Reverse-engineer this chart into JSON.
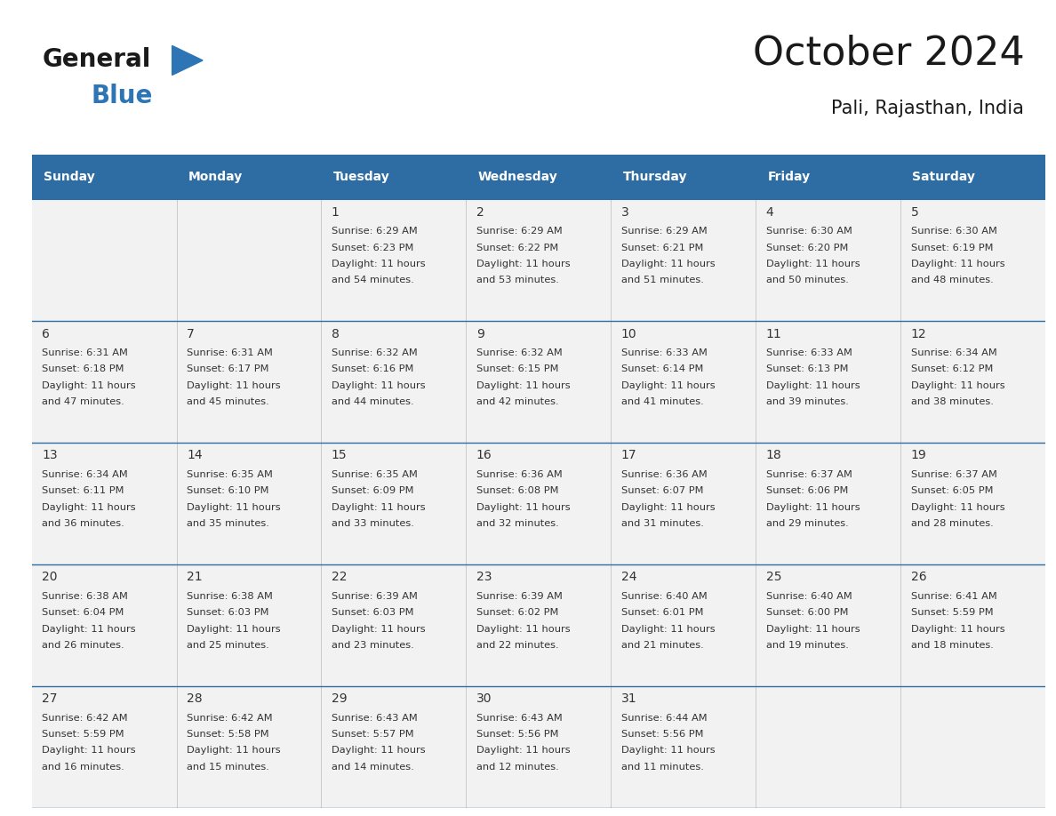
{
  "title": "October 2024",
  "subtitle": "Pali, Rajasthan, India",
  "header_color": "#2E6DA4",
  "header_text_color": "#FFFFFF",
  "cell_bg_color": "#F2F2F2",
  "text_color": "#333333",
  "line_color": "#2E6DA4",
  "day_names": [
    "Sunday",
    "Monday",
    "Tuesday",
    "Wednesday",
    "Thursday",
    "Friday",
    "Saturday"
  ],
  "days": [
    {
      "date": 1,
      "col": 2,
      "row": 0,
      "sunrise": "6:29 AM",
      "sunset": "6:23 PM",
      "daylight_min": "54"
    },
    {
      "date": 2,
      "col": 3,
      "row": 0,
      "sunrise": "6:29 AM",
      "sunset": "6:22 PM",
      "daylight_min": "53"
    },
    {
      "date": 3,
      "col": 4,
      "row": 0,
      "sunrise": "6:29 AM",
      "sunset": "6:21 PM",
      "daylight_min": "51"
    },
    {
      "date": 4,
      "col": 5,
      "row": 0,
      "sunrise": "6:30 AM",
      "sunset": "6:20 PM",
      "daylight_min": "50"
    },
    {
      "date": 5,
      "col": 6,
      "row": 0,
      "sunrise": "6:30 AM",
      "sunset": "6:19 PM",
      "daylight_min": "48"
    },
    {
      "date": 6,
      "col": 0,
      "row": 1,
      "sunrise": "6:31 AM",
      "sunset": "6:18 PM",
      "daylight_min": "47"
    },
    {
      "date": 7,
      "col": 1,
      "row": 1,
      "sunrise": "6:31 AM",
      "sunset": "6:17 PM",
      "daylight_min": "45"
    },
    {
      "date": 8,
      "col": 2,
      "row": 1,
      "sunrise": "6:32 AM",
      "sunset": "6:16 PM",
      "daylight_min": "44"
    },
    {
      "date": 9,
      "col": 3,
      "row": 1,
      "sunrise": "6:32 AM",
      "sunset": "6:15 PM",
      "daylight_min": "42"
    },
    {
      "date": 10,
      "col": 4,
      "row": 1,
      "sunrise": "6:33 AM",
      "sunset": "6:14 PM",
      "daylight_min": "41"
    },
    {
      "date": 11,
      "col": 5,
      "row": 1,
      "sunrise": "6:33 AM",
      "sunset": "6:13 PM",
      "daylight_min": "39"
    },
    {
      "date": 12,
      "col": 6,
      "row": 1,
      "sunrise": "6:34 AM",
      "sunset": "6:12 PM",
      "daylight_min": "38"
    },
    {
      "date": 13,
      "col": 0,
      "row": 2,
      "sunrise": "6:34 AM",
      "sunset": "6:11 PM",
      "daylight_min": "36"
    },
    {
      "date": 14,
      "col": 1,
      "row": 2,
      "sunrise": "6:35 AM",
      "sunset": "6:10 PM",
      "daylight_min": "35"
    },
    {
      "date": 15,
      "col": 2,
      "row": 2,
      "sunrise": "6:35 AM",
      "sunset": "6:09 PM",
      "daylight_min": "33"
    },
    {
      "date": 16,
      "col": 3,
      "row": 2,
      "sunrise": "6:36 AM",
      "sunset": "6:08 PM",
      "daylight_min": "32"
    },
    {
      "date": 17,
      "col": 4,
      "row": 2,
      "sunrise": "6:36 AM",
      "sunset": "6:07 PM",
      "daylight_min": "31"
    },
    {
      "date": 18,
      "col": 5,
      "row": 2,
      "sunrise": "6:37 AM",
      "sunset": "6:06 PM",
      "daylight_min": "29"
    },
    {
      "date": 19,
      "col": 6,
      "row": 2,
      "sunrise": "6:37 AM",
      "sunset": "6:05 PM",
      "daylight_min": "28"
    },
    {
      "date": 20,
      "col": 0,
      "row": 3,
      "sunrise": "6:38 AM",
      "sunset": "6:04 PM",
      "daylight_min": "26"
    },
    {
      "date": 21,
      "col": 1,
      "row": 3,
      "sunrise": "6:38 AM",
      "sunset": "6:03 PM",
      "daylight_min": "25"
    },
    {
      "date": 22,
      "col": 2,
      "row": 3,
      "sunrise": "6:39 AM",
      "sunset": "6:03 PM",
      "daylight_min": "23"
    },
    {
      "date": 23,
      "col": 3,
      "row": 3,
      "sunrise": "6:39 AM",
      "sunset": "6:02 PM",
      "daylight_min": "22"
    },
    {
      "date": 24,
      "col": 4,
      "row": 3,
      "sunrise": "6:40 AM",
      "sunset": "6:01 PM",
      "daylight_min": "21"
    },
    {
      "date": 25,
      "col": 5,
      "row": 3,
      "sunrise": "6:40 AM",
      "sunset": "6:00 PM",
      "daylight_min": "19"
    },
    {
      "date": 26,
      "col": 6,
      "row": 3,
      "sunrise": "6:41 AM",
      "sunset": "5:59 PM",
      "daylight_min": "18"
    },
    {
      "date": 27,
      "col": 0,
      "row": 4,
      "sunrise": "6:42 AM",
      "sunset": "5:59 PM",
      "daylight_min": "16"
    },
    {
      "date": 28,
      "col": 1,
      "row": 4,
      "sunrise": "6:42 AM",
      "sunset": "5:58 PM",
      "daylight_min": "15"
    },
    {
      "date": 29,
      "col": 2,
      "row": 4,
      "sunrise": "6:43 AM",
      "sunset": "5:57 PM",
      "daylight_min": "14"
    },
    {
      "date": 30,
      "col": 3,
      "row": 4,
      "sunrise": "6:43 AM",
      "sunset": "5:56 PM",
      "daylight_min": "12"
    },
    {
      "date": 31,
      "col": 4,
      "row": 4,
      "sunrise": "6:44 AM",
      "sunset": "5:56 PM",
      "daylight_min": "11"
    }
  ]
}
